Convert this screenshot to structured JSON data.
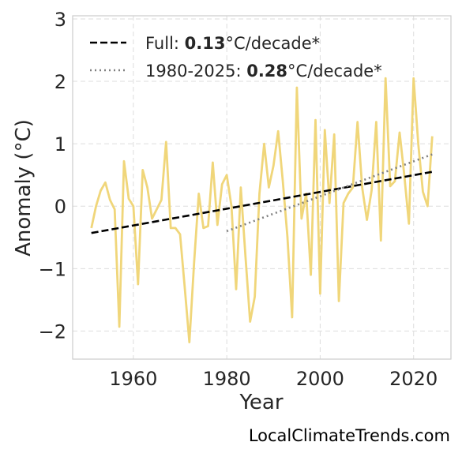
{
  "chart_data": {
    "type": "line",
    "xlabel": "Year",
    "ylabel": "Anomaly (°C)",
    "xlim": [
      1947,
      2028
    ],
    "ylim": [
      -2.45,
      3.05
    ],
    "x_ticks": [
      1960,
      1980,
      2000,
      2020
    ],
    "x_tick_labels": [
      "1960",
      "1980",
      "2000",
      "2020"
    ],
    "y_ticks": [
      -2,
      -1,
      0,
      1,
      2,
      3
    ],
    "y_tick_labels": [
      "−2",
      "−1",
      "0",
      "1",
      "2",
      "3"
    ],
    "grid": true,
    "legend_position": "top-left",
    "series": [
      {
        "role": "anomaly",
        "color": "#f0d67a",
        "style": "solid",
        "x": [
          1951,
          1952,
          1953,
          1954,
          1955,
          1956,
          1957,
          1958,
          1959,
          1960,
          1961,
          1962,
          1963,
          1964,
          1965,
          1966,
          1967,
          1968,
          1969,
          1970,
          1971,
          1972,
          1973,
          1974,
          1975,
          1976,
          1977,
          1978,
          1979,
          1980,
          1981,
          1982,
          1983,
          1984,
          1985,
          1986,
          1987,
          1988,
          1989,
          1990,
          1991,
          1992,
          1993,
          1994,
          1995,
          1996,
          1997,
          1998,
          1999,
          2000,
          2001,
          2002,
          2003,
          2004,
          2005,
          2006,
          2007,
          2008,
          2009,
          2010,
          2011,
          2012,
          2013,
          2014,
          2015,
          2016,
          2017,
          2018,
          2019,
          2020,
          2021,
          2022,
          2023,
          2024
        ],
        "values": [
          -0.35,
          0.0,
          0.25,
          0.38,
          0.1,
          -0.05,
          -1.93,
          0.72,
          0.12,
          0.0,
          -1.25,
          0.58,
          0.3,
          -0.2,
          -0.05,
          0.1,
          1.03,
          -0.35,
          -0.35,
          -0.45,
          -1.3,
          -2.18,
          -0.9,
          0.2,
          -0.35,
          -0.32,
          0.7,
          -0.3,
          0.35,
          0.5,
          0.0,
          -1.33,
          0.3,
          -0.8,
          -1.85,
          -1.45,
          0.2,
          1.0,
          0.3,
          0.65,
          1.2,
          0.4,
          -0.5,
          -1.78,
          1.9,
          -0.2,
          0.2,
          -1.1,
          1.38,
          -1.4,
          1.22,
          0.05,
          1.15,
          -1.52,
          0.05,
          0.2,
          0.3,
          1.35,
          0.3,
          -0.22,
          0.25,
          1.35,
          -0.55,
          2.05,
          0.32,
          0.4,
          1.18,
          0.5,
          -0.28,
          2.05,
          1.0,
          0.23,
          0.0,
          1.12
        ]
      },
      {
        "role": "full-trend",
        "color": "#000000",
        "style": "dashed",
        "x": [
          1951,
          2024
        ],
        "values": [
          -0.43,
          0.55
        ]
      },
      {
        "role": "recent-trend",
        "color": "#808080",
        "style": "dotted",
        "x": [
          1980,
          2024
        ],
        "values": [
          -0.4,
          0.83
        ]
      }
    ],
    "legend": [
      {
        "style": "dashed",
        "color": "#000000",
        "prefix": "Full: ",
        "value": "0.13",
        "suffix": "°C/decade*"
      },
      {
        "style": "dotted",
        "color": "#808080",
        "prefix": "1980-2025: ",
        "value": "0.28",
        "suffix": "°C/decade*"
      }
    ]
  },
  "watermark": "LocalClimateTrends.com"
}
